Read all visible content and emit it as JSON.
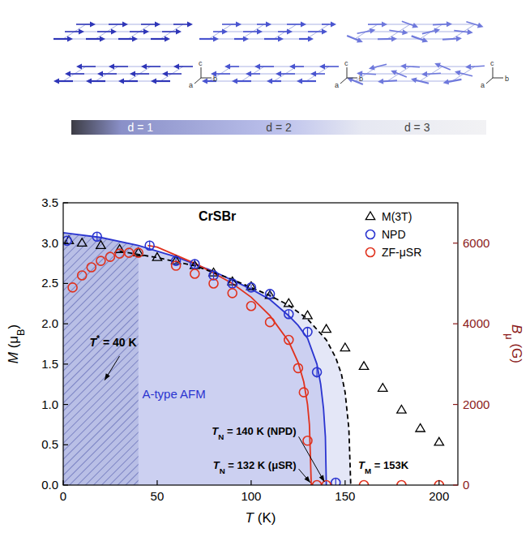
{
  "diagram": {
    "axis_labels": [
      "a",
      "b",
      "c"
    ],
    "dimension_labels": [
      "d = 1",
      "d = 2",
      "d = 3"
    ]
  },
  "chart_data": {
    "type": "scatter",
    "x_label": "T (K)",
    "y_label": "M (μB)",
    "y2_label": "Bμ (G)",
    "xlim": [
      0,
      210
    ],
    "xticks": [
      0,
      50,
      100,
      150,
      200
    ],
    "ylim": [
      0,
      3.5
    ],
    "yticks": [
      {
        "value": 0,
        "label": "0.0"
      },
      0.5,
      {
        "value": 1,
        "label": "1.0"
      },
      1.5,
      {
        "value": 2,
        "label": "2.0"
      },
      2.5,
      {
        "value": 3,
        "label": "3.0"
      },
      3.5
    ],
    "y2lim": [
      0,
      7000
    ],
    "y2ticks": [
      0,
      2000,
      4000,
      6000
    ],
    "legend": "upper right",
    "grid": false,
    "hatch_region": [
      0,
      40
    ],
    "series": [
      {
        "name": "M(3T)",
        "color": "#000000",
        "marker": "triangle",
        "axis": "y",
        "x": [
          3,
          10,
          20,
          30,
          40,
          50,
          60,
          70,
          80,
          90,
          100,
          110,
          120,
          130,
          140,
          150,
          160,
          170,
          180,
          190,
          200
        ],
        "values": [
          3.03,
          3.0,
          2.97,
          2.92,
          2.88,
          2.82,
          2.78,
          2.72,
          2.63,
          2.52,
          2.46,
          2.35,
          2.25,
          2.1,
          1.93,
          1.7,
          1.47,
          1.2,
          0.93,
          0.7,
          0.53
        ]
      },
      {
        "name": "NPD",
        "color": "#2b35d0",
        "marker": "circle",
        "axis": "y",
        "x": [
          2,
          18,
          46,
          60,
          70,
          80,
          90,
          100,
          110,
          120,
          130,
          135,
          145
        ],
        "values": [
          3.03,
          3.08,
          2.97,
          2.78,
          2.74,
          2.6,
          2.5,
          2.45,
          2.37,
          2.12,
          1.9,
          1.4,
          0.03
        ],
        "errors": [
          0.04,
          0.05,
          0.06,
          0.05,
          0.06,
          0.05,
          0.05,
          0.04,
          0.04,
          0.05,
          0.06,
          0.07,
          0.05
        ]
      },
      {
        "name": "ZF-μSR",
        "color": "#e0321e",
        "marker": "circle",
        "axis": "y2",
        "x": [
          5,
          10,
          15,
          20,
          25,
          30,
          35,
          40,
          60,
          70,
          80,
          90,
          100,
          110,
          120,
          125,
          128,
          130,
          135,
          140,
          160,
          180,
          200
        ],
        "values": [
          4900,
          5200,
          5400,
          5560,
          5660,
          5740,
          5760,
          5760,
          5440,
          5240,
          5000,
          4760,
          4440,
          4040,
          3600,
          2900,
          2300,
          1100,
          0,
          0,
          0,
          0,
          0
        ]
      }
    ],
    "fits": [
      {
        "color": "#2b35d0",
        "line_style": "solid",
        "axis": "y",
        "x": [
          0,
          20,
          40,
          60,
          80,
          100,
          110,
          120,
          125,
          130,
          135,
          137,
          138.5,
          139.5,
          140
        ],
        "values": [
          3.13,
          3.07,
          2.97,
          2.83,
          2.65,
          2.43,
          2.3,
          2.1,
          1.98,
          1.82,
          1.5,
          1.25,
          0.95,
          0.6,
          0
        ]
      },
      {
        "color": "#e0321e",
        "line_style": "solid",
        "axis": "y2",
        "x": [
          45,
          50,
          60,
          70,
          80,
          90,
          100,
          110,
          120,
          125,
          128,
          130,
          131,
          132
        ],
        "values": [
          5940,
          5900,
          5700,
          5500,
          5260,
          5000,
          4660,
          4200,
          3560,
          3040,
          2560,
          2000,
          1500,
          0
        ]
      },
      {
        "color": "#000000",
        "line_style": "dashed",
        "axis": "y",
        "x": [
          30,
          50,
          70,
          90,
          110,
          120,
          130,
          140,
          145,
          148,
          150,
          152,
          153
        ],
        "values": [
          2.9,
          2.82,
          2.72,
          2.55,
          2.35,
          2.23,
          2.06,
          1.8,
          1.58,
          1.38,
          1.15,
          0.7,
          0
        ]
      }
    ],
    "annotations": [
      {
        "text": "CrSBr",
        "color": "#000000"
      },
      {
        "text": "T* = 40 K",
        "color": "#000000"
      },
      {
        "text": "A-type AFM",
        "color": "#2b35d0"
      },
      {
        "text": "TN = 140 K (NPD)",
        "color": "#000000"
      },
      {
        "text": "TN = 132 K (μSR)",
        "color": "#000000"
      },
      {
        "text": "TM = 153K",
        "color": "#000000"
      }
    ]
  }
}
